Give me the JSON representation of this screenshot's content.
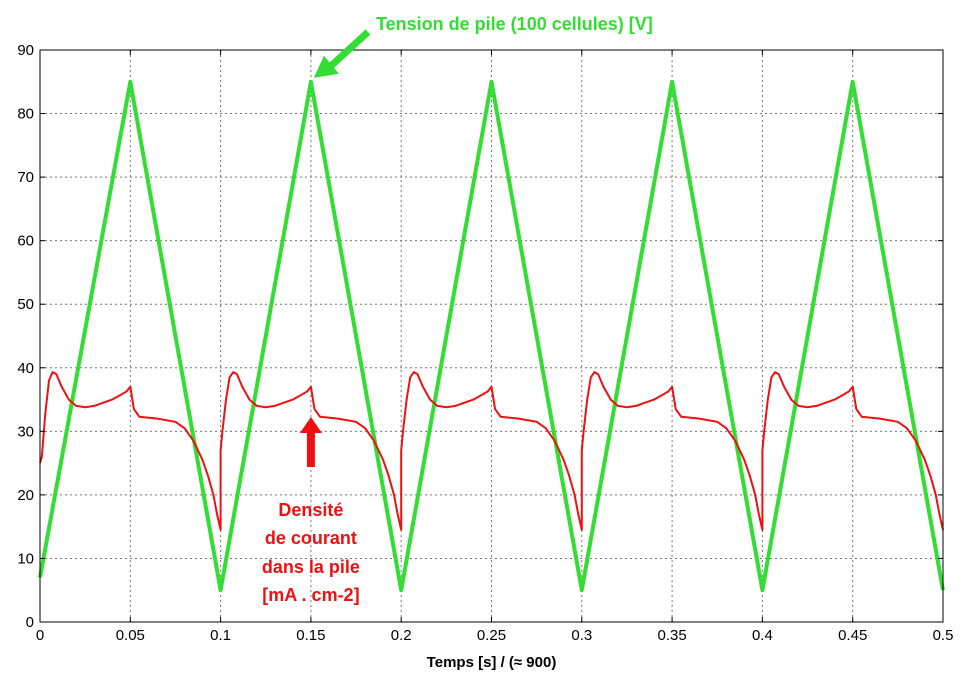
{
  "chart_data": {
    "type": "line",
    "xlabel": "Temps [s] / (≈ 900)",
    "ylabel": "",
    "xlim": [
      0,
      0.5
    ],
    "ylim": [
      0,
      90
    ],
    "xticks": [
      "0",
      "0.05",
      "0.1",
      "0.15",
      "0.2",
      "0.25",
      "0.3",
      "0.35",
      "0.4",
      "0.45",
      "0.5"
    ],
    "yticks": [
      "0",
      "10",
      "20",
      "30",
      "40",
      "50",
      "60",
      "70",
      "80",
      "90"
    ],
    "grid": true,
    "series": [
      {
        "name": "Tension de pile (100 cellules) [V]",
        "color": "#33dd33",
        "x": [
          0,
          0.05,
          0.1,
          0.15,
          0.2,
          0.25,
          0.3,
          0.35,
          0.4,
          0.45,
          0.5
        ],
        "y": [
          7,
          85,
          5,
          85,
          5,
          85,
          5,
          85,
          5,
          85,
          5
        ]
      },
      {
        "name": "Densité de courant dans la pile [mA . cm-2]",
        "color": "#ee1111",
        "x": [
          0,
          0.001,
          0.003,
          0.005,
          0.007,
          0.009,
          0.012,
          0.016,
          0.02,
          0.025,
          0.03,
          0.035,
          0.04,
          0.045,
          0.048,
          0.05,
          0.052,
          0.055,
          0.065,
          0.075,
          0.08,
          0.085,
          0.09,
          0.093,
          0.096,
          0.098,
          0.1,
          0.1,
          0.101,
          0.103,
          0.105,
          0.107,
          0.109,
          0.112,
          0.116,
          0.12,
          0.125,
          0.13,
          0.135,
          0.14,
          0.145,
          0.148,
          0.15,
          0.152,
          0.155,
          0.165,
          0.175,
          0.18,
          0.185,
          0.19,
          0.193,
          0.196,
          0.198,
          0.2,
          0.2,
          0.201,
          0.203,
          0.205,
          0.207,
          0.209,
          0.212,
          0.216,
          0.22,
          0.225,
          0.23,
          0.235,
          0.24,
          0.245,
          0.248,
          0.25,
          0.252,
          0.255,
          0.265,
          0.275,
          0.28,
          0.285,
          0.29,
          0.293,
          0.296,
          0.298,
          0.3,
          0.3,
          0.301,
          0.303,
          0.305,
          0.307,
          0.309,
          0.312,
          0.316,
          0.32,
          0.325,
          0.33,
          0.335,
          0.34,
          0.345,
          0.348,
          0.35,
          0.352,
          0.355,
          0.365,
          0.375,
          0.38,
          0.385,
          0.39,
          0.393,
          0.396,
          0.398,
          0.4,
          0.4,
          0.401,
          0.403,
          0.405,
          0.407,
          0.409,
          0.412,
          0.416,
          0.42,
          0.425,
          0.43,
          0.435,
          0.44,
          0.445,
          0.448,
          0.45,
          0.452,
          0.455,
          0.465,
          0.475,
          0.48,
          0.485,
          0.49,
          0.493,
          0.496,
          0.498,
          0.5
        ],
        "y": [
          25,
          26,
          33,
          38,
          39.3,
          39,
          37,
          35,
          34,
          33.8,
          34,
          34.5,
          35,
          35.8,
          36.3,
          37,
          33.5,
          32.3,
          32,
          31.5,
          30.5,
          28.5,
          25.5,
          23,
          20,
          17,
          14.5,
          27,
          30,
          35,
          38.5,
          39.3,
          39,
          37,
          35,
          34,
          33.8,
          34,
          34.5,
          35,
          35.8,
          36.3,
          37,
          33.5,
          32.3,
          32,
          31.5,
          30.5,
          28.5,
          25.5,
          23,
          20,
          17,
          14.5,
          27,
          30,
          35,
          38.5,
          39.3,
          39,
          37,
          35,
          34,
          33.8,
          34,
          34.5,
          35,
          35.8,
          36.3,
          37,
          33.5,
          32.3,
          32,
          31.5,
          30.5,
          28.5,
          25.5,
          23,
          20,
          17,
          14.5,
          27,
          30,
          35,
          38.5,
          39.3,
          39,
          37,
          35,
          34,
          33.8,
          34,
          34.5,
          35,
          35.8,
          36.3,
          37,
          33.5,
          32.3,
          32,
          31.5,
          30.5,
          28.5,
          25.5,
          23,
          20,
          17,
          14.5,
          27,
          30,
          35,
          38.5,
          39.3,
          39,
          37,
          35,
          34,
          33.8,
          34,
          34.5,
          35,
          35.8,
          36.3,
          37,
          33.5,
          32.3,
          32,
          31.5,
          30.5,
          28.5,
          25.5,
          23,
          20,
          17,
          14.5
        ]
      }
    ],
    "annotations": [
      {
        "series": 0,
        "color": "#33dd33",
        "lines": [
          "Tension de pile (100 cellules) [V]"
        ],
        "points_to": {
          "x": 0.15,
          "y": 85
        }
      },
      {
        "series": 1,
        "color": "#ee1111",
        "lines": [
          "Densité",
          "de courant",
          "dans la pile",
          "[mA . cm-2]"
        ],
        "points_to": {
          "x": 0.15,
          "y": 31
        }
      }
    ]
  }
}
